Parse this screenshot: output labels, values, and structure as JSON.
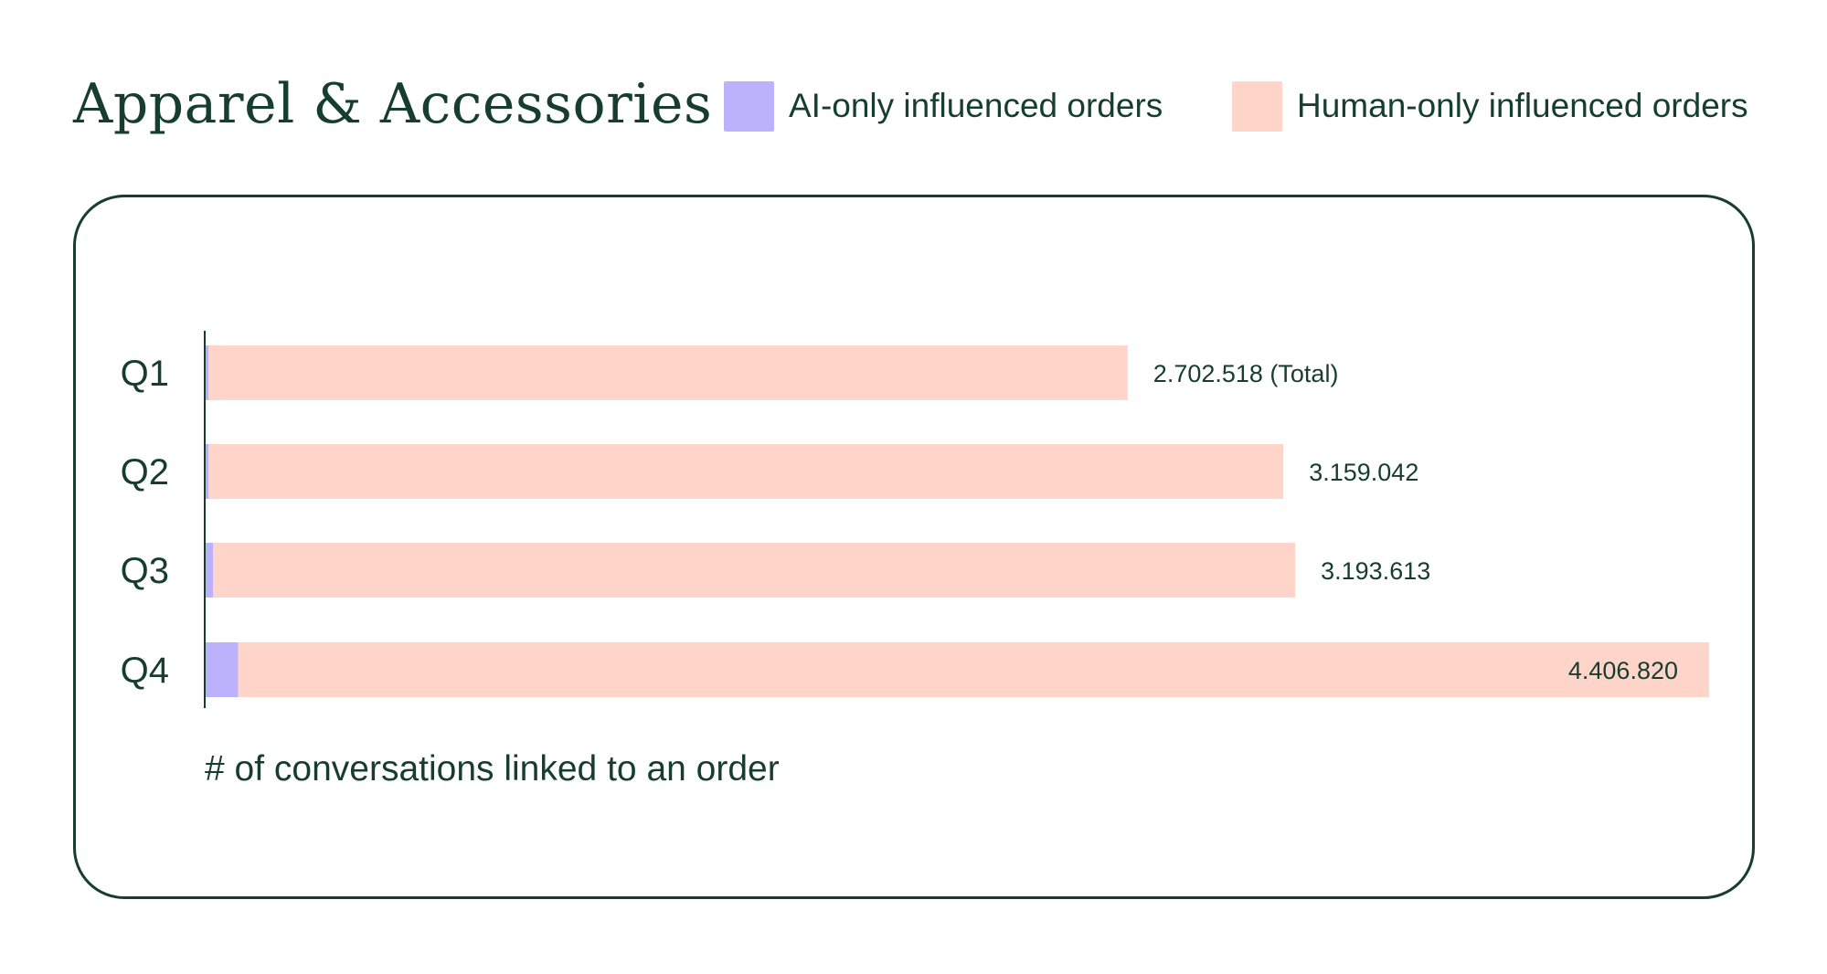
{
  "title": "Apparel & Accessories",
  "legend": [
    {
      "label": "AI-only influenced orders",
      "color": "#bcb1fb"
    },
    {
      "label": "Human-only influenced orders",
      "color": "#ffd5c9"
    }
  ],
  "colors": {
    "text": "#163d30",
    "panel_border": "#163d30",
    "ai": "#bcb1fb",
    "human": "#ffd5c9"
  },
  "chart_data": {
    "type": "bar",
    "orientation": "horizontal",
    "stacked": true,
    "title": "Apparel & Accessories",
    "xlabel": "# of conversations linked to an order",
    "ylabel": "",
    "categories": [
      "Q1",
      "Q2",
      "Q3",
      "Q4"
    ],
    "series": [
      {
        "name": "AI-only influenced orders",
        "values": [
          9000,
          9000,
          22000,
          95000
        ]
      },
      {
        "name": "Human-only influenced orders",
        "values": [
          2693518,
          3150042,
          3171613,
          4311820
        ]
      }
    ],
    "totals": [
      2702518,
      3159042,
      3193613,
      4406820
    ],
    "data_labels": [
      "2.702.518 (Total)",
      "3.159.042",
      "3.193.613",
      "4.406.820"
    ],
    "xlim": [
      0,
      4406820
    ],
    "grid": false,
    "legend_position": "top-right"
  }
}
